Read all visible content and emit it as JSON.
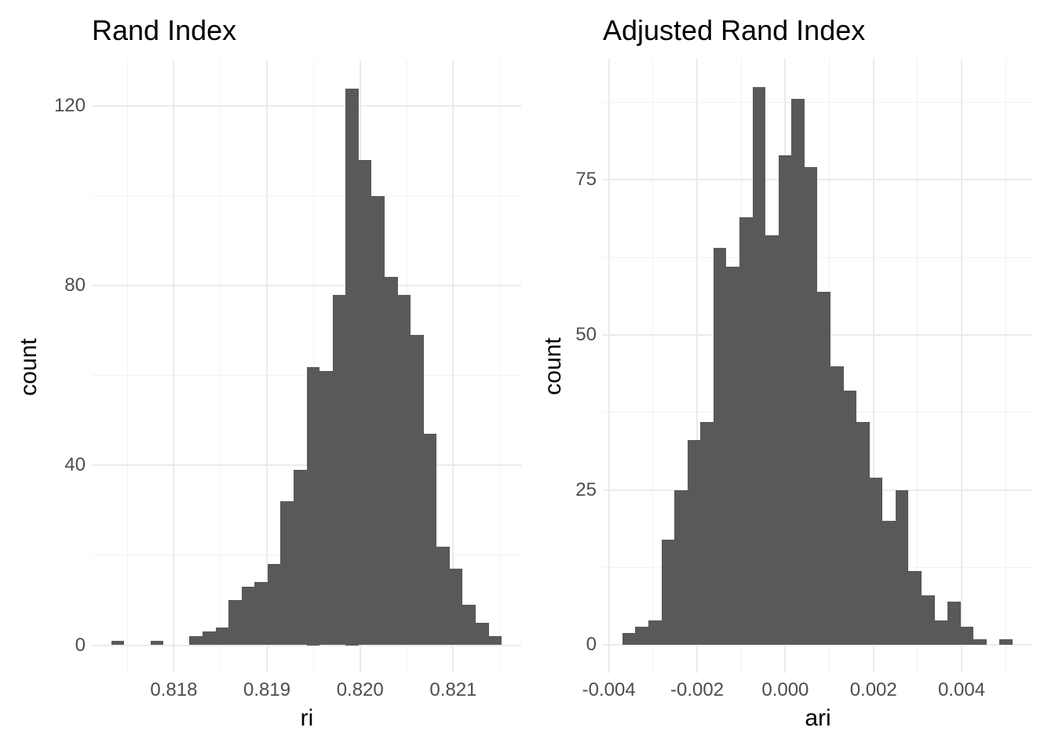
{
  "styles": {
    "background": "#FFFFFF",
    "bar_color": "#595959",
    "grid_major_color": "#EBEBEB",
    "grid_minor_color": "#F2F2F2",
    "tick_text_color": "#4D4D4D",
    "title_text_color": "#000000"
  },
  "chart_data": [
    {
      "type": "bar",
      "subtype": "histogram",
      "title": "Rand Index",
      "xlabel": "ri",
      "ylabel": "count",
      "bins": 30,
      "first_bin_left_edge": 0.81733,
      "binwidth": 0.0001397,
      "counts": [
        1,
        0,
        0,
        1,
        0,
        0,
        2,
        3,
        4,
        10,
        13,
        14,
        18,
        32,
        39,
        62,
        61,
        78,
        124,
        108,
        100,
        82,
        78,
        69,
        47,
        22,
        17,
        9,
        5,
        2
      ],
      "x_major_ticks": [
        0.818,
        0.819,
        0.82,
        0.821
      ],
      "x_tick_labels": [
        "0.818",
        "0.819",
        "0.820",
        "0.821"
      ],
      "x_minor_ticks": [
        0.8175,
        0.8185,
        0.8195,
        0.8205,
        0.8215
      ],
      "y_major_ticks": [
        0,
        40,
        80,
        120
      ],
      "y_tick_labels": [
        "0",
        "40",
        "80",
        "120"
      ],
      "y_minor_ticks": [
        20,
        60,
        100
      ],
      "xlim": [
        0.81712,
        0.82173
      ],
      "ylim": [
        -6.2,
        130.2
      ],
      "grid": true,
      "legend": "none"
    },
    {
      "type": "bar",
      "subtype": "histogram",
      "title": "Adjusted Rand Index",
      "xlabel": "ari",
      "ylabel": "count",
      "bins": 30,
      "first_bin_left_edge": -0.003694,
      "binwidth": 0.000295,
      "counts": [
        2,
        3,
        4,
        17,
        25,
        33,
        36,
        64,
        61,
        69,
        90,
        66,
        79,
        88,
        77,
        57,
        45,
        41,
        36,
        27,
        20,
        25,
        12,
        8,
        4,
        7,
        3,
        1,
        0,
        1
      ],
      "x_major_ticks": [
        -0.004,
        -0.002,
        0.0,
        0.002,
        0.004
      ],
      "x_tick_labels": [
        "-0.004",
        "-0.002",
        "0.000",
        "0.002",
        "0.004"
      ],
      "x_minor_ticks": [
        -0.003,
        -0.001,
        0.001,
        0.003,
        0.005
      ],
      "y_major_ticks": [
        0,
        25,
        50,
        75
      ],
      "y_tick_labels": [
        "0",
        "25",
        "50",
        "75"
      ],
      "y_minor_ticks": [
        12.5,
        37.5,
        62.5,
        87.5
      ],
      "xlim": [
        -0.004137,
        0.005601
      ],
      "ylim": [
        -4.5,
        94.5
      ],
      "grid": true,
      "legend": "none"
    }
  ]
}
